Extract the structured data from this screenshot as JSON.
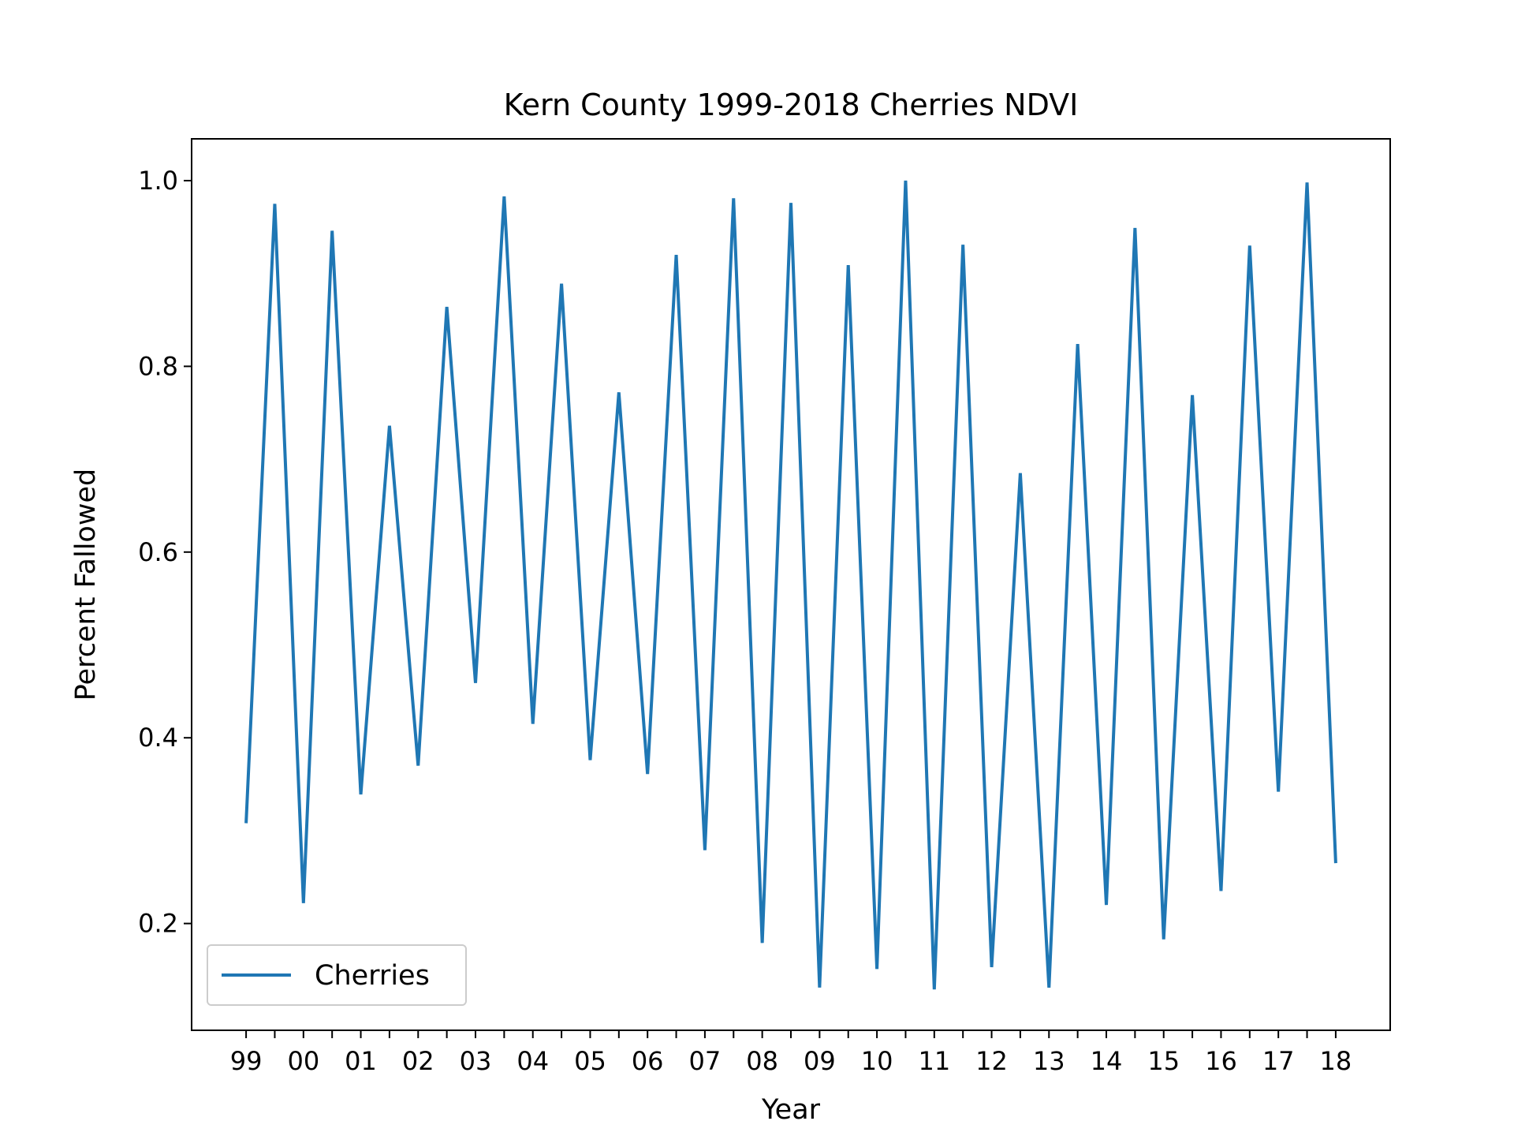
{
  "chart_data": {
    "type": "line",
    "title": "Kern County 1999-2018 Cherries NDVI",
    "xlabel": "Year",
    "ylabel": "Percent Fallowed",
    "x_tick_labels": [
      "99",
      "00",
      "01",
      "02",
      "03",
      "04",
      "05",
      "06",
      "07",
      "08",
      "09",
      "10",
      "11",
      "12",
      "13",
      "14",
      "15",
      "16",
      "17",
      "18"
    ],
    "x": [
      1999,
      1999.5,
      2000,
      2000.5,
      2001,
      2001.5,
      2002,
      2002.5,
      2003,
      2003.5,
      2004,
      2004.5,
      2005,
      2005.5,
      2006,
      2006.5,
      2007,
      2007.5,
      2008,
      2008.5,
      2009,
      2009.5,
      2010,
      2010.5,
      2011,
      2011.5,
      2012,
      2012.5,
      2013,
      2013.5,
      2014,
      2014.5,
      2015,
      2015.5,
      2016,
      2016.5,
      2017,
      2017.5,
      2018
    ],
    "xlim": [
      1998.05,
      2018.95
    ],
    "y_ticks": [
      0.2,
      0.4,
      0.6,
      0.8,
      1.0
    ],
    "y_tick_labels": [
      "0.2",
      "0.4",
      "0.6",
      "0.8",
      "1.0"
    ],
    "ylim": [
      0.085,
      1.045
    ],
    "series": [
      {
        "name": "Cherries",
        "color": "#1f77b4",
        "values": [
          0.308,
          0.975,
          0.222,
          0.946,
          0.339,
          0.736,
          0.37,
          0.864,
          0.459,
          0.983,
          0.415,
          0.889,
          0.376,
          0.772,
          0.361,
          0.92,
          0.279,
          0.981,
          0.179,
          0.976,
          0.131,
          0.909,
          0.151,
          1.0,
          0.129,
          0.931,
          0.153,
          0.685,
          0.131,
          0.824,
          0.22,
          0.949,
          0.183,
          0.769,
          0.235,
          0.93,
          0.342,
          0.998,
          0.265
        ]
      }
    ],
    "legend_position": "lower left",
    "grid": false
  }
}
